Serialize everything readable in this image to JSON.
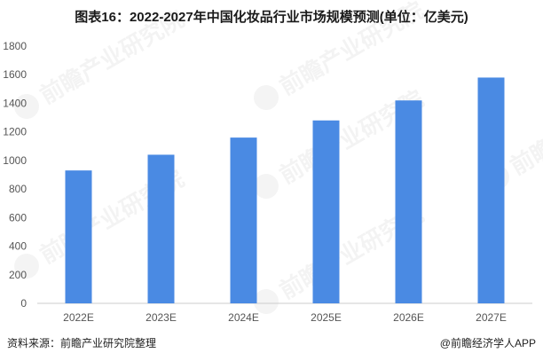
{
  "title": "图表16：2022-2027年中国化妆品行业市场规模预测(单位：亿美元)",
  "source": "资料来源：前瞻产业研究院整理",
  "credit": "@前瞻经济学人APP",
  "watermark": "前瞻产业研究院",
  "colors": {
    "bar": "#4a8ae3",
    "grid": "#e6e6e6",
    "axis": "#cccccc"
  },
  "chart_data": {
    "type": "bar",
    "title": "图表16：2022-2027年中国化妆品行业市场规模预测(单位：亿美元)",
    "categories": [
      "2022E",
      "2023E",
      "2024E",
      "2025E",
      "2026E",
      "2027E"
    ],
    "values": [
      930,
      1040,
      1160,
      1280,
      1420,
      1580
    ],
    "yticks": [
      0,
      200,
      400,
      600,
      800,
      1000,
      1200,
      1400,
      1600,
      1800
    ],
    "ylim": [
      0,
      1800
    ],
    "xlabel": "",
    "ylabel": "",
    "grid": false,
    "legend": "none"
  }
}
